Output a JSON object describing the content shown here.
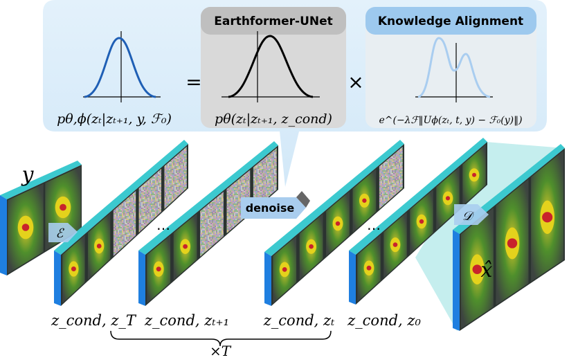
{
  "equation": {
    "lhs": "pθ,ϕ(zₜ|zₜ₊₁, y, ℱ₀)",
    "equals": "=",
    "model_title": "Earthformer-UNet",
    "model_term": "pθ(zₜ|zₜ₊₁, z_cond)",
    "times": "×",
    "alignment_title": "Knowledge Alignment",
    "alignment_term": "e^(−λℱ‖Uϕ(zₜ, t, y) − ℱ₀(y)‖)"
  },
  "pipeline": {
    "input": "y",
    "encoder": "ℰ",
    "decoder": "𝒟",
    "output": "x̂",
    "denoise": "denoise",
    "ellipsis": [
      "…",
      "…"
    ],
    "states": [
      "z_cond, z_T",
      "z_cond, zₜ₊₁",
      "z_cond, zₜ",
      "z_cond, z₀"
    ],
    "repeat": "×T"
  }
}
